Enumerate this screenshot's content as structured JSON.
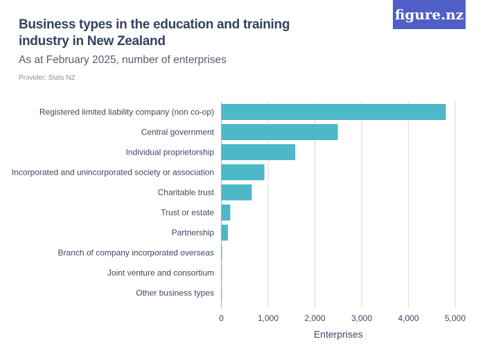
{
  "title": "Business types in the education and training industry in New Zealand",
  "subtitle": "As at February 2025, number of enterprises",
  "provider": "Provider: Stats NZ",
  "logo": "figure.nz",
  "chart_data": {
    "type": "bar",
    "orientation": "horizontal",
    "categories": [
      "Registered limited liability company (non co-op)",
      "Central government",
      "Individual proprietorship",
      "Incorporated and unincorporated society or association",
      "Charitable trust",
      "Trust or estate",
      "Partnership",
      "Branch of company incorporated overseas",
      "Joint venture and consortium",
      "Other business types"
    ],
    "values": [
      4800,
      2490,
      1580,
      920,
      650,
      190,
      140,
      15,
      12,
      3
    ],
    "xlabel": "Enterprises",
    "xlim": [
      0,
      5000
    ],
    "xticks": [
      0,
      1000,
      2000,
      3000,
      4000,
      5000
    ],
    "xtick_labels": [
      "0",
      "1,000",
      "2,000",
      "3,000",
      "4,000",
      "5,000"
    ],
    "grid": true,
    "bar_color": "#4db8c8"
  }
}
